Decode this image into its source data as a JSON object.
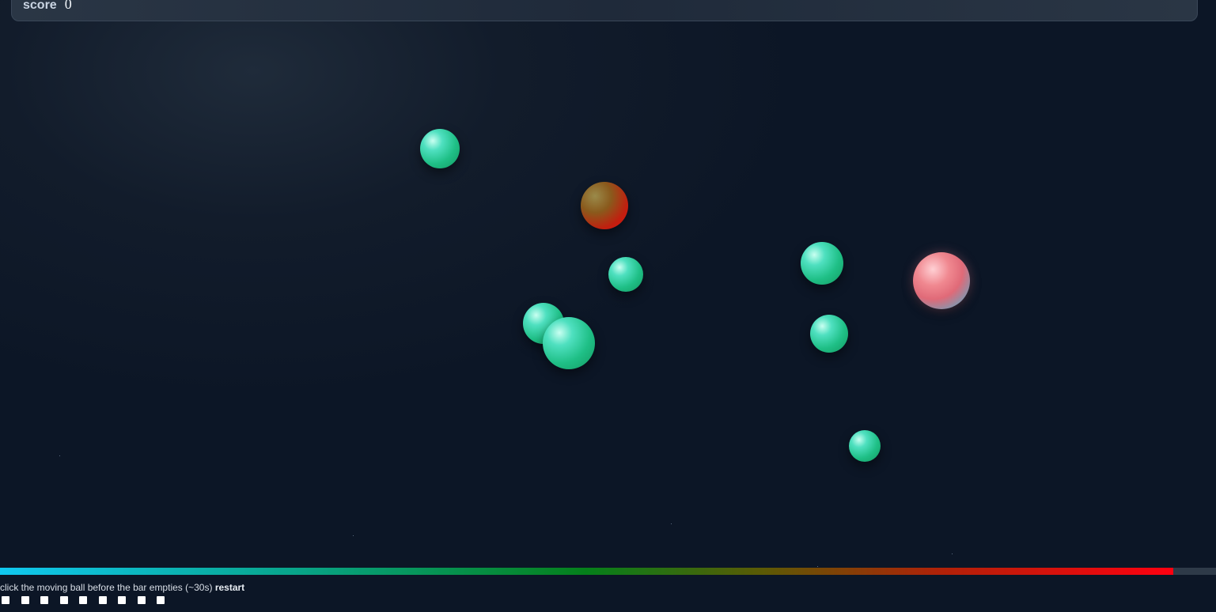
{
  "score": {
    "label": "score",
    "value": "0"
  },
  "timer": {
    "remaining_fraction": 0.965
  },
  "hint": {
    "text": "click the moving ball before the bar empties (~30s)",
    "restart_label": "restart"
  },
  "lives": {
    "count": 9
  },
  "balls": [
    {
      "kind": "green"
    },
    {
      "kind": "target"
    },
    {
      "kind": "green"
    },
    {
      "kind": "green"
    },
    {
      "kind": "green"
    },
    {
      "kind": "pinkblue"
    },
    {
      "kind": "green"
    },
    {
      "kind": "green"
    },
    {
      "kind": "green"
    }
  ],
  "colors": {
    "background": "#0c1626",
    "ball_green": "#1fbf86",
    "ball_target": "#e01010",
    "timer_start": "#10c8f0",
    "timer_end": "#ff0010"
  }
}
